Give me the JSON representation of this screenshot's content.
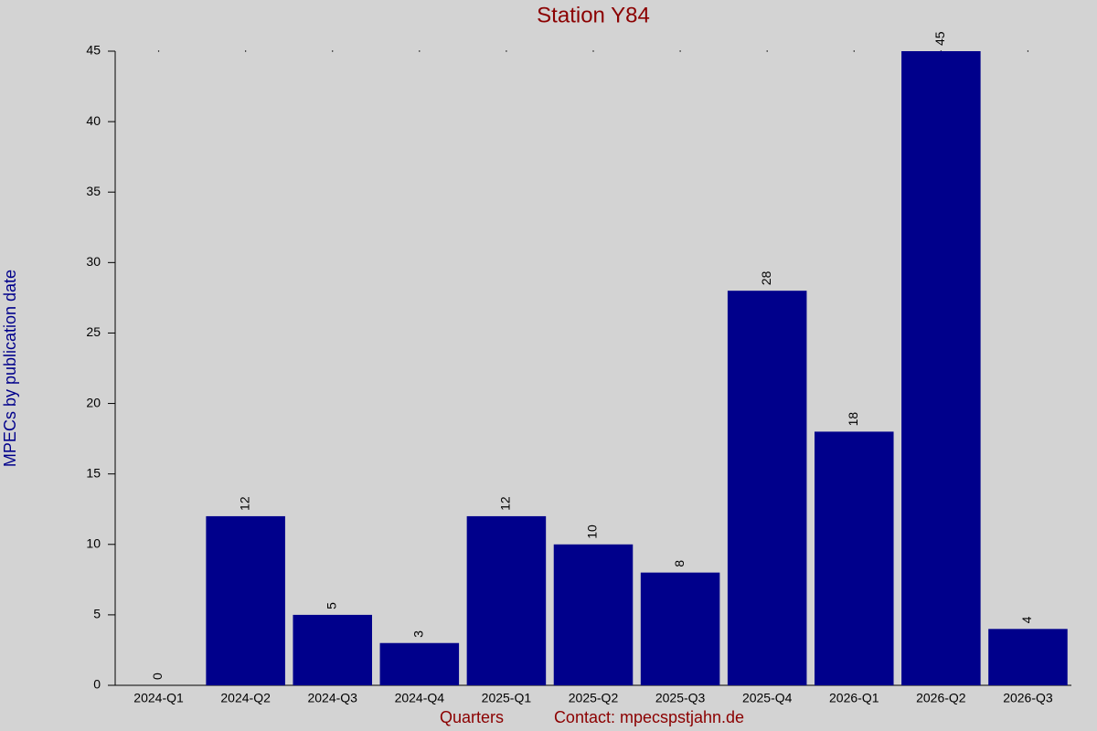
{
  "chart_data": {
    "type": "bar",
    "title": "Station Y84",
    "x_label": "Quarters",
    "contact": "Contact: mpecspstjahn.de",
    "y_label": "MPECs by publication date",
    "categories": [
      "2024-Q1",
      "2024-Q2",
      "2024-Q3",
      "2024-Q4",
      "2025-Q1",
      "2025-Q2",
      "2025-Q3",
      "2025-Q4",
      "2026-Q1",
      "2026-Q2",
      "2026-Q3"
    ],
    "values": [
      0,
      12,
      5,
      3,
      12,
      10,
      8,
      28,
      18,
      45,
      4
    ],
    "color": "#00008b",
    "ylim": [
      0,
      45
    ],
    "yticks": [
      0,
      5,
      10,
      15,
      20,
      25,
      30,
      35,
      40,
      45
    ],
    "grid": false
  }
}
